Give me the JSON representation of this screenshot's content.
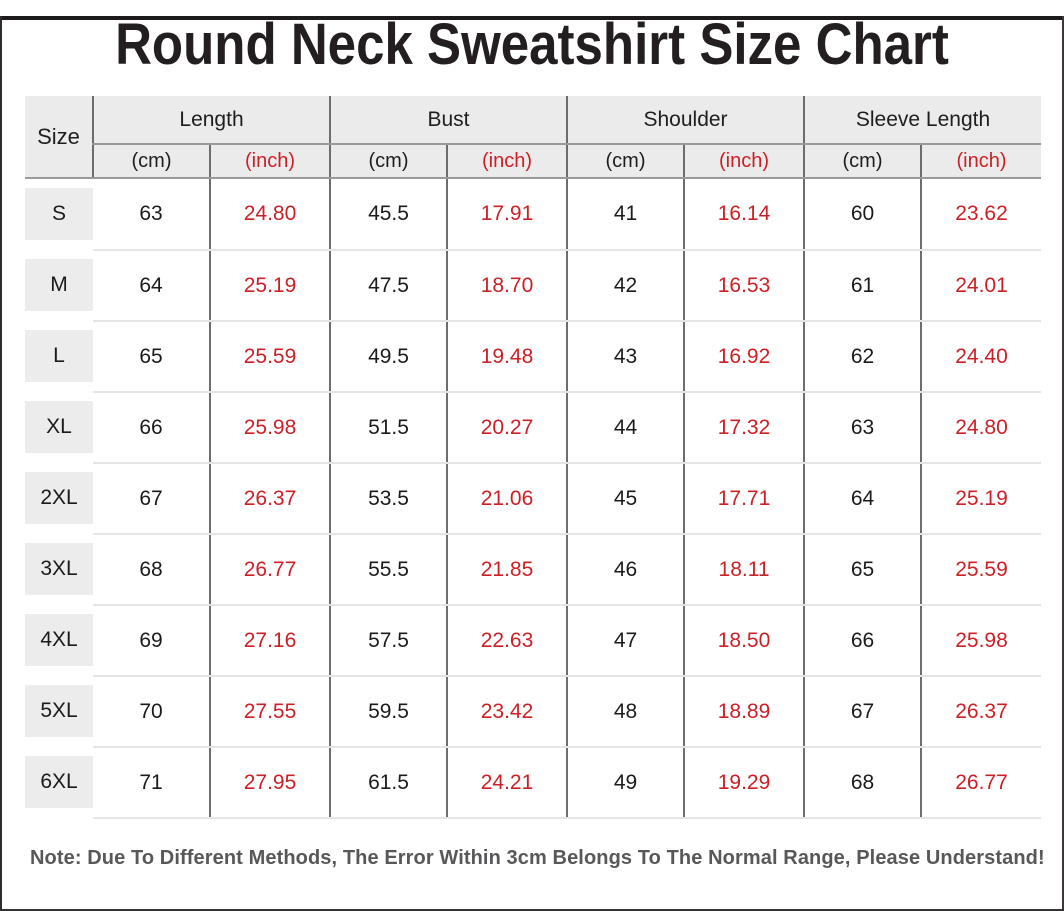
{
  "title": "Round Neck Sweatshirt Size Chart",
  "note": "Note: Due To Different Methods, The Error Within 3cm Belongs To The Normal Range, Please Understand!",
  "table": {
    "size_label": "Size",
    "groups": [
      {
        "label": "Length"
      },
      {
        "label": "Bust"
      },
      {
        "label": "Shoulder"
      },
      {
        "label": "Sleeve Length"
      }
    ],
    "unit_cm": "(cm)",
    "unit_inch": "(inch)",
    "rows": [
      {
        "size": "S",
        "length_cm": "63",
        "length_in": "24.80",
        "bust_cm": "45.5",
        "bust_in": "17.91",
        "shoulder_cm": "41",
        "shoulder_in": "16.14",
        "sleeve_cm": "60",
        "sleeve_in": "23.62"
      },
      {
        "size": "M",
        "length_cm": "64",
        "length_in": "25.19",
        "bust_cm": "47.5",
        "bust_in": "18.70",
        "shoulder_cm": "42",
        "shoulder_in": "16.53",
        "sleeve_cm": "61",
        "sleeve_in": "24.01"
      },
      {
        "size": "L",
        "length_cm": "65",
        "length_in": "25.59",
        "bust_cm": "49.5",
        "bust_in": "19.48",
        "shoulder_cm": "43",
        "shoulder_in": "16.92",
        "sleeve_cm": "62",
        "sleeve_in": "24.40"
      },
      {
        "size": "XL",
        "length_cm": "66",
        "length_in": "25.98",
        "bust_cm": "51.5",
        "bust_in": "20.27",
        "shoulder_cm": "44",
        "shoulder_in": "17.32",
        "sleeve_cm": "63",
        "sleeve_in": "24.80"
      },
      {
        "size": "2XL",
        "length_cm": "67",
        "length_in": "26.37",
        "bust_cm": "53.5",
        "bust_in": "21.06",
        "shoulder_cm": "45",
        "shoulder_in": "17.71",
        "sleeve_cm": "64",
        "sleeve_in": "25.19"
      },
      {
        "size": "3XL",
        "length_cm": "68",
        "length_in": "26.77",
        "bust_cm": "55.5",
        "bust_in": "21.85",
        "shoulder_cm": "46",
        "shoulder_in": "18.11",
        "sleeve_cm": "65",
        "sleeve_in": "25.59"
      },
      {
        "size": "4XL",
        "length_cm": "69",
        "length_in": "27.16",
        "bust_cm": "57.5",
        "bust_in": "22.63",
        "shoulder_cm": "47",
        "shoulder_in": "18.50",
        "sleeve_cm": "66",
        "sleeve_in": "25.98"
      },
      {
        "size": "5XL",
        "length_cm": "70",
        "length_in": "27.55",
        "bust_cm": "59.5",
        "bust_in": "23.42",
        "shoulder_cm": "48",
        "shoulder_in": "18.89",
        "sleeve_cm": "67",
        "sleeve_in": "26.37"
      },
      {
        "size": "6XL",
        "length_cm": "71",
        "length_in": "27.95",
        "bust_cm": "61.5",
        "bust_in": "24.21",
        "shoulder_cm": "49",
        "shoulder_in": "19.29",
        "sleeve_cm": "68",
        "sleeve_in": "26.77"
      }
    ]
  },
  "colors": {
    "accent_red": "#cd2026",
    "header_bg": "#ebebeb",
    "size_cell_bg": "#ececec",
    "grid_dark": "#6d6d6d",
    "grid_light": "#e5e5e5",
    "title_color": "#231f20",
    "note_color": "#58585a"
  },
  "chart_data": {
    "type": "table",
    "title": "Round Neck Sweatshirt Size Chart",
    "columns": [
      "Size",
      "Length (cm)",
      "Length (inch)",
      "Bust (cm)",
      "Bust (inch)",
      "Shoulder (cm)",
      "Shoulder (inch)",
      "Sleeve Length (cm)",
      "Sleeve Length (inch)"
    ],
    "rows": [
      [
        "S",
        63,
        24.8,
        45.5,
        17.91,
        41,
        16.14,
        60,
        23.62
      ],
      [
        "M",
        64,
        25.19,
        47.5,
        18.7,
        42,
        16.53,
        61,
        24.01
      ],
      [
        "L",
        65,
        25.59,
        49.5,
        19.48,
        43,
        16.92,
        62,
        24.4
      ],
      [
        "XL",
        66,
        25.98,
        51.5,
        20.27,
        44,
        17.32,
        63,
        24.8
      ],
      [
        "2XL",
        67,
        26.37,
        53.5,
        21.06,
        45,
        17.71,
        64,
        25.19
      ],
      [
        "3XL",
        68,
        26.77,
        55.5,
        21.85,
        46,
        18.11,
        65,
        25.59
      ],
      [
        "4XL",
        69,
        27.16,
        57.5,
        22.63,
        47,
        18.5,
        66,
        25.98
      ],
      [
        "5XL",
        70,
        27.55,
        59.5,
        23.42,
        48,
        18.89,
        67,
        26.37
      ],
      [
        "6XL",
        71,
        27.95,
        61.5,
        24.21,
        49,
        19.29,
        68,
        26.77
      ]
    ],
    "note": "Error within 3cm belongs to the normal range"
  }
}
